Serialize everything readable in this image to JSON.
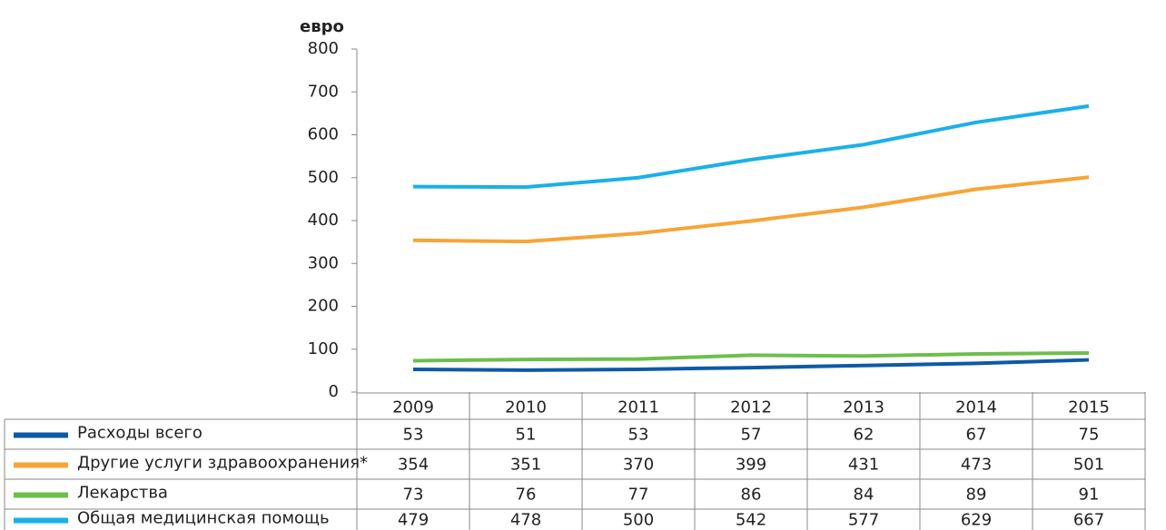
{
  "chart_data": {
    "type": "line",
    "y_label": "евро",
    "categories": [
      "2009",
      "2010",
      "2011",
      "2012",
      "2013",
      "2014",
      "2015"
    ],
    "series": [
      {
        "name": "Расходы всего",
        "color": "#0d5aa6",
        "values": [
          53,
          51,
          53,
          57,
          62,
          67,
          75
        ]
      },
      {
        "name": "Другие услуги здравоохранения*",
        "color": "#f7a535",
        "values": [
          354,
          351,
          370,
          399,
          431,
          473,
          501
        ]
      },
      {
        "name": "Лекарства",
        "color": "#6cbf4b",
        "values": [
          73,
          76,
          77,
          86,
          84,
          89,
          91
        ]
      },
      {
        "name": "Общая медицинская помощь",
        "color": "#1ab0ea",
        "values": [
          479,
          478,
          500,
          542,
          577,
          629,
          667
        ]
      }
    ],
    "ylim": [
      0,
      800
    ],
    "yticks": [
      0,
      100,
      200,
      300,
      400,
      500,
      600,
      700,
      800
    ],
    "grid": false
  }
}
